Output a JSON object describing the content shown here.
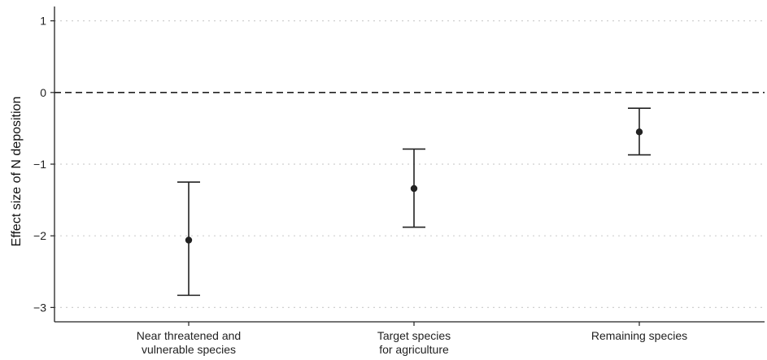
{
  "chart_data": {
    "type": "errorbar",
    "title": "",
    "xlabel": "",
    "ylabel": "Effect size of N deposition",
    "ylim": [
      -3.2,
      1.2
    ],
    "yticks": [
      1,
      0,
      -1,
      -2,
      -3
    ],
    "ytick_labels": [
      "1",
      "0",
      "−1",
      "−2",
      "−3"
    ],
    "grid": "horizontal-dotted",
    "reference_line": 0,
    "categories": [
      [
        "Near threatened and",
        "vulnerable species"
      ],
      [
        "Target species",
        "for agriculture"
      ],
      [
        "Remaining species"
      ]
    ],
    "points": [
      {
        "estimate": -2.06,
        "lower": -2.83,
        "upper": -1.25
      },
      {
        "estimate": -1.34,
        "lower": -1.88,
        "upper": -0.79
      },
      {
        "estimate": -0.55,
        "lower": -0.87,
        "upper": -0.22
      }
    ],
    "colors": {
      "point": "#222222",
      "axis": "#222222",
      "grid": "#cfcfcf",
      "reference": "#222222"
    }
  }
}
